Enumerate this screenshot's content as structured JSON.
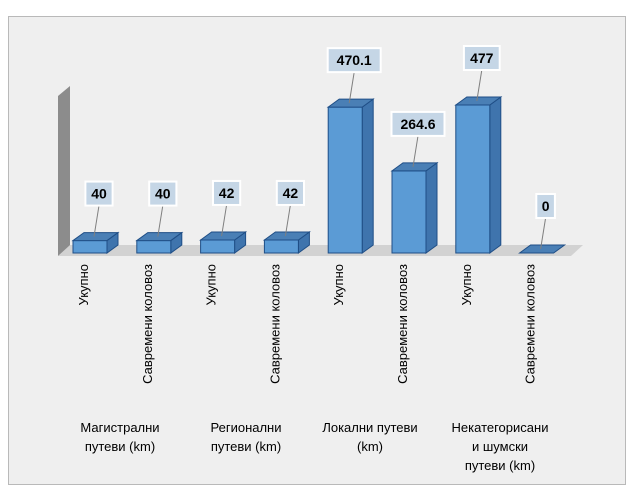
{
  "chart_data": {
    "type": "bar",
    "title": "",
    "xlabel": "",
    "ylabel": "",
    "ylim": [
      0,
      520
    ],
    "categories": [
      "Укупно",
      "Савремени коловоз",
      "Укупно",
      "Савремени коловоз",
      "Укупно",
      "Савремени коловоз",
      "Укупно",
      "Савремени коловоз"
    ],
    "values": [
      40,
      40,
      42,
      42,
      470.1,
      264.6,
      477,
      0
    ],
    "value_labels": [
      "40",
      "40",
      "42",
      "42",
      "470.1",
      "264.6",
      "477",
      "0"
    ],
    "groups": [
      {
        "label": "Магистрални путеви (km)",
        "lines": [
          "Магистрални",
          "путеви (km)"
        ]
      },
      {
        "label": "Регионални путеви (km)",
        "lines": [
          "Регионални",
          "путеви (km)"
        ]
      },
      {
        "label": "Локални путеви (km)",
        "lines": [
          "Локални путеви",
          "(km)"
        ]
      },
      {
        "label": "Некатегорисани и шумски путеви (km)",
        "lines": [
          "Некатегорисани",
          "и шумски",
          "путеви (km)"
        ]
      }
    ],
    "legend": "none",
    "grid": false,
    "colors": {
      "bar_front": "#5b9bd5",
      "bar_top": "#4a7fb5",
      "bar_side": "#3f74ad",
      "bar_edge": "#1f4e86",
      "label_box": "#c5d6e6",
      "label_box_border": "#ffffff",
      "wall": "#8c8c8c",
      "floor": "#d2d2d2",
      "background": "#efefef"
    }
  }
}
